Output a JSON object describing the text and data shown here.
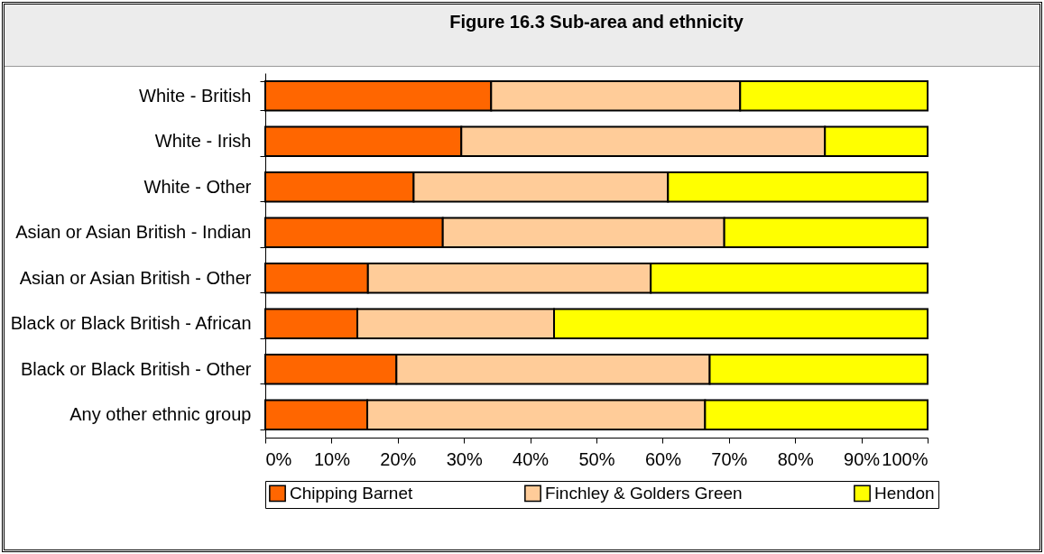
{
  "chart_data": {
    "type": "bar",
    "orientation": "horizontal",
    "stacked": true,
    "title": "Figure 16.3 Sub-area and ethnicity",
    "categories": [
      "White - British",
      "White - Irish",
      "White - Other",
      "Asian or Asian British - Indian",
      "Asian or Asian British - Other",
      "Black or Black British - African",
      "Black or Black British - Other",
      "Any other ethnic group"
    ],
    "series": [
      {
        "name": "Chipping Barnet",
        "color": "#ff6600",
        "values": [
          34.1,
          29.6,
          22.4,
          26.8,
          15.5,
          13.9,
          19.8,
          15.4
        ]
      },
      {
        "name": "Finchley & Golders Green",
        "color": "#ffcc99",
        "values": [
          37.6,
          54.9,
          38.4,
          42.5,
          42.7,
          29.7,
          47.3,
          51.0
        ]
      },
      {
        "name": "Hendon",
        "color": "#ffff00",
        "values": [
          28.3,
          15.5,
          39.2,
          30.7,
          41.8,
          56.4,
          32.9,
          33.6
        ]
      }
    ],
    "xlim": [
      0,
      100
    ],
    "xticks": [
      {
        "value": 0,
        "label": "0%"
      },
      {
        "value": 10,
        "label": "10%"
      },
      {
        "value": 20,
        "label": "20%"
      },
      {
        "value": 30,
        "label": "30%"
      },
      {
        "value": 40,
        "label": "40%"
      },
      {
        "value": 50,
        "label": "50%"
      },
      {
        "value": 60,
        "label": "60%"
      },
      {
        "value": 70,
        "label": "70%"
      },
      {
        "value": 80,
        "label": "80%"
      },
      {
        "value": 90,
        "label": "90%"
      },
      {
        "value": 100,
        "label": "100%"
      }
    ],
    "grid": false,
    "legend": "bottom"
  }
}
